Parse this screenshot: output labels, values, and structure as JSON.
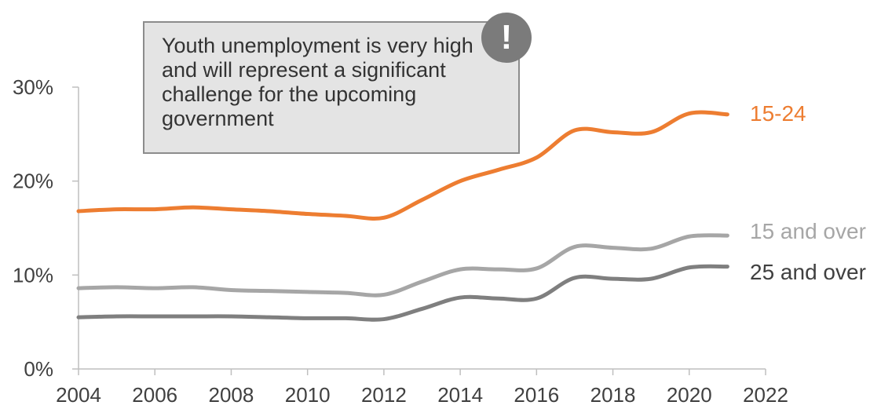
{
  "chart_data": {
    "type": "line",
    "x": [
      2004,
      2005,
      2006,
      2007,
      2008,
      2009,
      2010,
      2011,
      2012,
      2013,
      2014,
      2015,
      2016,
      2017,
      2018,
      2019,
      2020,
      2021
    ],
    "series": [
      {
        "name": "15-24",
        "color": "#ed7d31",
        "values": [
          16.8,
          17.0,
          17.0,
          17.2,
          17.0,
          16.8,
          16.5,
          16.3,
          16.1,
          18.0,
          20.0,
          21.2,
          22.5,
          25.4,
          25.2,
          25.2,
          27.2,
          27.1
        ]
      },
      {
        "name": "15 and over",
        "color": "#a6a6a6",
        "values": [
          8.6,
          8.7,
          8.6,
          8.7,
          8.4,
          8.3,
          8.2,
          8.1,
          7.9,
          9.3,
          10.6,
          10.6,
          10.7,
          13.0,
          12.9,
          12.8,
          14.1,
          14.2
        ]
      },
      {
        "name": "25 and over",
        "color": "#7f7f7f",
        "values": [
          5.5,
          5.6,
          5.6,
          5.6,
          5.6,
          5.5,
          5.4,
          5.4,
          5.3,
          6.4,
          7.6,
          7.5,
          7.5,
          9.7,
          9.6,
          9.6,
          10.8,
          10.9
        ]
      }
    ],
    "xlim": [
      2004,
      2022
    ],
    "xticks": [
      "2004",
      "2006",
      "2008",
      "2010",
      "2012",
      "2014",
      "2016",
      "2018",
      "2020",
      "2022"
    ],
    "ylim": [
      0,
      30
    ],
    "yticks": [
      "0%",
      "10%",
      "20%",
      "30%"
    ],
    "grid": false,
    "legend": "inline labels at right end of each line",
    "annotation": {
      "text": "Youth unemployment is very high and will represent a significant challenge for the upcoming government",
      "icon": "exclamation-icon",
      "icon_glyph": "!"
    }
  }
}
